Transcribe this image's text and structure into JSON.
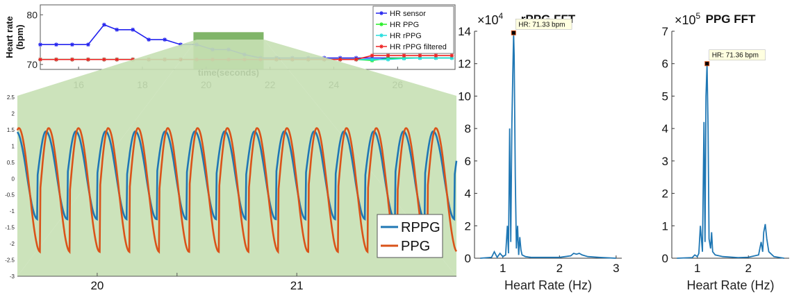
{
  "chart_data": [
    {
      "type": "line",
      "id": "hr-timeline",
      "ylabel": "Heart rate\n(bpm)",
      "xlabel": "time(seconds)",
      "xlim": [
        14.8,
        27.8
      ],
      "ylim": [
        69,
        82
      ],
      "x_ticks": [
        "16",
        "18",
        "20",
        "22",
        "24",
        "26"
      ],
      "y_ticks": [
        "70",
        "80"
      ],
      "highlight_range": [
        19.6,
        21.8
      ],
      "colors": {
        "HR sensor": "#2222ee",
        "HR PPG": "#22ee22",
        "HR rPPG": "#22dddd",
        "HR rPPG filtered": "#ee2222",
        "highlight": "#6aa84f"
      },
      "legend": [
        "HR sensor",
        "HR PPG",
        "HR rPPG",
        "HR rPPG filtered"
      ],
      "series": [
        {
          "name": "HR sensor",
          "x": [
            14.8,
            15.3,
            15.8,
            16.3,
            16.8,
            17.2,
            17.7,
            18.2,
            18.7,
            19.2,
            19.7,
            20.2,
            20.7,
            21.2,
            21.7,
            22.2,
            22.7,
            23.2,
            23.7,
            24.2,
            24.7,
            25.2,
            25.7,
            26.2,
            26.7,
            27.2,
            27.7
          ],
          "values": [
            74,
            74,
            74,
            74,
            78,
            77,
            77,
            75,
            75,
            74,
            74,
            73,
            73,
            72,
            71.3,
            71.3,
            71.3,
            71.3,
            71.3,
            71.3,
            71.3,
            71.3,
            71.3,
            71.3,
            71.3,
            71.3,
            71.3
          ]
        },
        {
          "name": "HR PPG",
          "x": [
            14.8,
            15.3,
            15.8,
            16.3,
            16.8,
            17.2,
            17.7,
            18.2,
            18.7,
            19.2,
            19.7,
            20.2,
            20.7,
            21.2,
            21.7,
            22.2,
            22.7,
            23.2,
            23.7,
            24.2,
            24.7,
            25.2,
            25.7,
            26.2,
            26.7,
            27.2,
            27.7
          ],
          "values": [
            71,
            71,
            71,
            71,
            71,
            71,
            71,
            71,
            71,
            71,
            71,
            71,
            71,
            71,
            71,
            71,
            71,
            71,
            71,
            71,
            71,
            70.8,
            71.2,
            71.3,
            71.3,
            71.3,
            71.3
          ]
        },
        {
          "name": "HR rPPG",
          "x": [
            14.8,
            15.3,
            15.8,
            16.3,
            16.8,
            17.2,
            17.7,
            18.2,
            18.7,
            19.2,
            19.7,
            20.2,
            20.7,
            21.2,
            21.7,
            22.2,
            22.7,
            23.2,
            23.7,
            24.2,
            24.7,
            25.2,
            25.7,
            26.2,
            26.7,
            27.2,
            27.7
          ],
          "values": [
            71,
            71,
            71,
            71,
            71,
            71,
            71,
            71,
            71,
            71,
            71,
            71,
            71,
            71,
            71,
            71,
            71,
            71,
            71,
            71,
            71,
            71,
            71,
            71.2,
            71.3,
            71.3,
            71.3
          ]
        },
        {
          "name": "HR rPPG filtered",
          "x": [
            14.8,
            15.3,
            15.8,
            16.3,
            16.8,
            17.2,
            17.7,
            18.2,
            18.7,
            19.2,
            19.7,
            20.2,
            20.7,
            21.2,
            21.7,
            22.2,
            22.7,
            23.2,
            23.7,
            24.2,
            24.7,
            25.2,
            25.7,
            26.2,
            26.7,
            27.2,
            27.7
          ],
          "values": [
            71,
            71,
            71,
            71,
            71,
            71,
            71,
            71,
            71,
            71,
            71,
            71,
            71,
            71,
            71,
            71,
            71,
            71,
            71,
            71,
            71,
            71.8,
            71.8,
            71.8,
            71.8,
            71.8,
            71.8
          ]
        }
      ]
    },
    {
      "type": "line",
      "id": "signal-zoom",
      "xlim": [
        19.6,
        21.8
      ],
      "ylim": [
        -3,
        2.5
      ],
      "x_ticks": [
        "20",
        "21"
      ],
      "y_ticks": [
        "-3",
        "-2.5",
        "-2",
        "-1.5",
        "-1",
        "-0.5",
        "0",
        "0.5",
        "1",
        "1.5",
        "2",
        "2.5"
      ],
      "legend": [
        "RPPG",
        "PPG"
      ],
      "colors": {
        "RPPG": "#1f77b4",
        "PPG": "#d95319",
        "shade": "#c6e0b4"
      },
      "series": [
        {
          "name": "RPPG",
          "freq_hz": 6.7,
          "phase": 0.0,
          "amplitude": 1.35,
          "offset": 0.1
        },
        {
          "name": "PPG",
          "freq_hz": 6.7,
          "phase": -0.55,
          "amplitude": 1.9,
          "offset": -0.35
        }
      ]
    },
    {
      "type": "line",
      "id": "rppg-fft",
      "title": "rPPG FFT",
      "xlabel": "Heart Rate (Hz)",
      "xlim": [
        0.5,
        3.1
      ],
      "ylim": [
        0,
        14
      ],
      "y_exponent": "×10",
      "y_exponent_power": "4",
      "x_ticks": [
        "1",
        "2",
        "3"
      ],
      "y_ticks": [
        "0",
        "2",
        "4",
        "6",
        "8",
        "10",
        "12",
        "14"
      ],
      "color": "#1f77b4",
      "peak_label": "HR: 71.33 bpm",
      "peak": {
        "x": 1.19,
        "y": 13.9
      },
      "x": [
        0.6,
        0.8,
        0.85,
        0.9,
        0.95,
        1.0,
        1.05,
        1.08,
        1.1,
        1.12,
        1.14,
        1.16,
        1.18,
        1.19,
        1.2,
        1.22,
        1.24,
        1.26,
        1.28,
        1.3,
        1.32,
        1.34,
        1.4,
        1.5,
        1.7,
        2.0,
        2.1,
        2.2,
        2.25,
        2.3,
        2.35,
        2.4,
        2.5,
        2.7,
        3.0
      ],
      "values": [
        0,
        0.05,
        0.4,
        0.05,
        0.3,
        0.1,
        0.2,
        2.0,
        0.3,
        8.0,
        1.0,
        8.3,
        12.0,
        13.9,
        12.5,
        5.0,
        0.6,
        2.0,
        0.2,
        1.3,
        0.5,
        0.2,
        0.1,
        0.05,
        0.05,
        0.05,
        0.1,
        0.15,
        0.3,
        0.25,
        0.3,
        0.2,
        0.1,
        0.05,
        0
      ]
    },
    {
      "type": "line",
      "id": "ppg-fft",
      "title": "PPG FFT",
      "xlabel": "Heart Rate (Hz)",
      "xlim": [
        0.5,
        2.8
      ],
      "ylim": [
        0,
        7
      ],
      "y_exponent": "×10",
      "y_exponent_power": "5",
      "x_ticks": [
        "1",
        "2"
      ],
      "y_ticks": [
        "0",
        "1",
        "2",
        "3",
        "4",
        "5",
        "6",
        "7"
      ],
      "color": "#1f77b4",
      "peak_label": "HR: 71.36 bpm",
      "peak": {
        "x": 1.19,
        "y": 6.0
      },
      "x": [
        0.6,
        0.9,
        0.95,
        1.0,
        1.03,
        1.06,
        1.1,
        1.13,
        1.15,
        1.17,
        1.19,
        1.21,
        1.23,
        1.26,
        1.28,
        1.3,
        1.35,
        1.5,
        1.8,
        2.0,
        2.2,
        2.25,
        2.28,
        2.3,
        2.33,
        2.36,
        2.4,
        2.5,
        2.7
      ],
      "values": [
        0,
        0.02,
        0.1,
        0.05,
        0.15,
        1.0,
        0.2,
        4.2,
        0.5,
        5.0,
        6.0,
        4.0,
        0.6,
        0.3,
        0.8,
        0.2,
        0.1,
        0.05,
        0.02,
        0.03,
        0.1,
        0.5,
        0.2,
        0.8,
        1.05,
        0.6,
        0.2,
        0.05,
        0
      ]
    }
  ]
}
